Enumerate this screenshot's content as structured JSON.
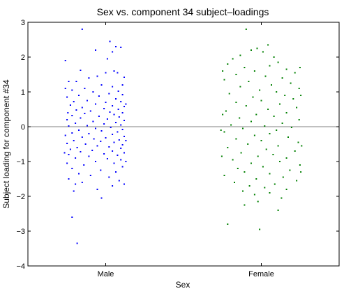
{
  "chart_data": {
    "type": "scatter",
    "title": "Sex vs. component 34 subject–loadings",
    "xlabel": "Sex",
    "ylabel": "Subject loading for component #34",
    "categories": [
      "Male",
      "Female"
    ],
    "ylim": [
      -4,
      3
    ],
    "yticks": [
      -4,
      -3,
      -2,
      -1,
      0,
      1,
      2,
      3
    ],
    "yticklabels": [
      "−4",
      "−3",
      "−2",
      "−1",
      "0",
      "1",
      "2",
      "3"
    ],
    "grid": false,
    "reference_line_y": 0,
    "colors": {
      "Male": "#0000ff",
      "Female": "#008000",
      "reference_line": "#808080"
    },
    "series": [
      {
        "name": "Male",
        "points": [
          [
            -0.28,
            2.8
          ],
          [
            0.05,
            2.45
          ],
          [
            0.12,
            2.3
          ],
          [
            0.18,
            2.28
          ],
          [
            -0.12,
            2.2
          ],
          [
            0.08,
            2.15
          ],
          [
            -0.48,
            1.9
          ],
          [
            0.02,
            1.95
          ],
          [
            -0.3,
            1.62
          ],
          [
            0.0,
            1.55
          ],
          [
            0.1,
            1.6
          ],
          [
            0.14,
            1.55
          ],
          [
            0.22,
            1.42
          ],
          [
            -0.2,
            1.4
          ],
          [
            -0.35,
            1.3
          ],
          [
            -0.1,
            1.45
          ],
          [
            -0.44,
            1.3
          ],
          [
            -0.05,
            1.2
          ],
          [
            0.08,
            1.15
          ],
          [
            0.2,
            1.2
          ],
          [
            -0.25,
            1.1
          ],
          [
            -0.4,
            1.05
          ],
          [
            -0.15,
            1.0
          ],
          [
            0.15,
            1.02
          ],
          [
            0.04,
            0.95
          ],
          [
            -0.32,
            0.9
          ],
          [
            -0.46,
            0.85
          ],
          [
            0.2,
            0.92
          ],
          [
            -0.08,
            0.88
          ],
          [
            0.12,
            0.8
          ],
          [
            -0.22,
            0.75
          ],
          [
            -0.38,
            0.72
          ],
          [
            0.0,
            0.7
          ],
          [
            0.18,
            0.72
          ],
          [
            -0.12,
            0.65
          ],
          [
            -0.42,
            0.62
          ],
          [
            0.08,
            0.6
          ],
          [
            0.22,
            0.58
          ],
          [
            -0.28,
            0.55
          ],
          [
            -0.02,
            0.52
          ],
          [
            0.15,
            0.5
          ],
          [
            -0.35,
            0.48
          ],
          [
            -0.18,
            0.45
          ],
          [
            0.05,
            0.42
          ],
          [
            -0.45,
            0.4
          ],
          [
            0.2,
            0.4
          ],
          [
            -0.25,
            0.38
          ],
          [
            0.1,
            0.35
          ],
          [
            -0.4,
            0.32
          ],
          [
            -0.08,
            0.3
          ],
          [
            0.16,
            0.28
          ],
          [
            -0.3,
            0.25
          ],
          [
            0.02,
            0.22
          ],
          [
            -0.46,
            0.2
          ],
          [
            0.22,
            0.18
          ],
          [
            -0.15,
            0.15
          ],
          [
            0.12,
            0.12
          ],
          [
            -0.36,
            0.1
          ],
          [
            -0.02,
            0.08
          ],
          [
            0.18,
            0.05
          ],
          [
            -0.22,
            0.03
          ],
          [
            -0.44,
            0.02
          ],
          [
            0.06,
            -0.02
          ],
          [
            -0.12,
            -0.05
          ],
          [
            0.2,
            -0.08
          ],
          [
            -0.32,
            -0.1
          ],
          [
            -0.05,
            -0.12
          ],
          [
            0.14,
            -0.15
          ],
          [
            -0.4,
            -0.18
          ],
          [
            -0.2,
            -0.2
          ],
          [
            0.08,
            -0.22
          ],
          [
            -0.48,
            -0.25
          ],
          [
            0.22,
            -0.28
          ],
          [
            -0.28,
            -0.3
          ],
          [
            0.0,
            -0.32
          ],
          [
            -0.14,
            -0.35
          ],
          [
            0.16,
            -0.38
          ],
          [
            -0.38,
            -0.4
          ],
          [
            -0.06,
            -0.42
          ],
          [
            0.1,
            -0.45
          ],
          [
            -0.46,
            -0.48
          ],
          [
            -0.24,
            -0.5
          ],
          [
            0.2,
            -0.52
          ],
          [
            -0.1,
            -0.55
          ],
          [
            0.04,
            -0.58
          ],
          [
            -0.34,
            -0.6
          ],
          [
            0.18,
            -0.62
          ],
          [
            -0.42,
            -0.65
          ],
          [
            -0.16,
            -0.68
          ],
          [
            0.08,
            -0.7
          ],
          [
            -0.3,
            -0.72
          ],
          [
            0.22,
            -0.75
          ],
          [
            -0.02,
            -0.78
          ],
          [
            -0.44,
            -0.8
          ],
          [
            0.14,
            -0.82
          ],
          [
            -0.2,
            -0.85
          ],
          [
            -0.36,
            -0.9
          ],
          [
            0.02,
            -0.92
          ],
          [
            0.18,
            -0.95
          ],
          [
            -0.12,
            -1.0
          ],
          [
            -0.46,
            -1.05
          ],
          [
            0.1,
            -1.05
          ],
          [
            -0.26,
            -1.1
          ],
          [
            0.2,
            -1.15
          ],
          [
            -0.4,
            -1.2
          ],
          [
            -0.06,
            -1.25
          ],
          [
            0.12,
            -1.3
          ],
          [
            -0.32,
            -1.35
          ],
          [
            -0.18,
            -1.4
          ],
          [
            0.04,
            -1.45
          ],
          [
            -0.44,
            -1.5
          ],
          [
            0.16,
            -1.55
          ],
          [
            -0.28,
            -1.6
          ],
          [
            0.22,
            -1.65
          ],
          [
            -0.36,
            -1.65
          ],
          [
            0.08,
            -1.7
          ],
          [
            -0.1,
            -1.8
          ],
          [
            -0.38,
            -1.85
          ],
          [
            -0.05,
            -2.05
          ],
          [
            -0.4,
            -2.6
          ],
          [
            -0.34,
            -3.35
          ],
          [
            -0.48,
            1.1
          ],
          [
            0.24,
            0.65
          ],
          [
            0.24,
            -0.4
          ],
          [
            -0.49,
            -0.75
          ],
          [
            0.24,
            -1.0
          ]
        ]
      },
      {
        "name": "Female",
        "points": [
          [
            -0.18,
            2.8
          ],
          [
            0.08,
            2.35
          ],
          [
            -0.05,
            2.25
          ],
          [
            -0.12,
            2.2
          ],
          [
            0.02,
            2.15
          ],
          [
            -0.25,
            2.05
          ],
          [
            0.15,
            2.0
          ],
          [
            -0.34,
            1.95
          ],
          [
            0.2,
            1.85
          ],
          [
            -0.4,
            1.8
          ],
          [
            0.1,
            1.75
          ],
          [
            -0.2,
            1.7
          ],
          [
            0.3,
            1.65
          ],
          [
            -0.08,
            1.6
          ],
          [
            0.4,
            1.55
          ],
          [
            -0.3,
            1.5
          ],
          [
            0.05,
            1.45
          ],
          [
            0.25,
            1.4
          ],
          [
            -0.44,
            1.35
          ],
          [
            -0.15,
            1.3
          ],
          [
            0.35,
            1.25
          ],
          [
            0.12,
            1.2
          ],
          [
            -0.25,
            1.15
          ],
          [
            0.45,
            1.1
          ],
          [
            -0.02,
            1.05
          ],
          [
            0.18,
            1.0
          ],
          [
            -0.38,
            0.95
          ],
          [
            0.28,
            0.9
          ],
          [
            -0.1,
            0.85
          ],
          [
            0.38,
            0.8
          ],
          [
            0.0,
            0.75
          ],
          [
            -0.3,
            0.7
          ],
          [
            0.22,
            0.65
          ],
          [
            -0.18,
            0.6
          ],
          [
            0.42,
            0.55
          ],
          [
            0.08,
            0.5
          ],
          [
            -0.42,
            0.45
          ],
          [
            0.3,
            0.4
          ],
          [
            -0.06,
            0.35
          ],
          [
            0.15,
            0.3
          ],
          [
            -0.26,
            0.25
          ],
          [
            0.45,
            0.2
          ],
          [
            -0.12,
            0.15
          ],
          [
            0.25,
            0.1
          ],
          [
            -0.36,
            0.05
          ],
          [
            0.04,
            0.02
          ],
          [
            0.36,
            -0.02
          ],
          [
            -0.22,
            -0.05
          ],
          [
            0.18,
            -0.1
          ],
          [
            -0.44,
            -0.15
          ],
          [
            0.1,
            -0.2
          ],
          [
            -0.08,
            -0.25
          ],
          [
            0.32,
            -0.3
          ],
          [
            -0.3,
            -0.35
          ],
          [
            0.0,
            -0.4
          ],
          [
            0.44,
            -0.45
          ],
          [
            -0.16,
            -0.5
          ],
          [
            0.2,
            -0.55
          ],
          [
            -0.4,
            -0.6
          ],
          [
            0.06,
            -0.65
          ],
          [
            0.4,
            -0.7
          ],
          [
            -0.24,
            -0.75
          ],
          [
            0.14,
            -0.8
          ],
          [
            -0.04,
            -0.85
          ],
          [
            0.3,
            -0.9
          ],
          [
            -0.34,
            -0.95
          ],
          [
            0.22,
            -1.0
          ],
          [
            -0.12,
            -1.05
          ],
          [
            0.46,
            -1.1
          ],
          [
            0.02,
            -1.15
          ],
          [
            -0.28,
            -1.2
          ],
          [
            0.34,
            -1.25
          ],
          [
            -0.2,
            -1.3
          ],
          [
            0.1,
            -1.35
          ],
          [
            -0.44,
            -1.4
          ],
          [
            0.26,
            -1.45
          ],
          [
            -0.06,
            -1.5
          ],
          [
            0.42,
            -1.55
          ],
          [
            -0.32,
            -1.6
          ],
          [
            0.16,
            -1.65
          ],
          [
            -0.14,
            -1.7
          ],
          [
            0.04,
            -1.75
          ],
          [
            0.3,
            -1.8
          ],
          [
            -0.22,
            -1.85
          ],
          [
            0.1,
            -1.9
          ],
          [
            -0.08,
            -1.95
          ],
          [
            0.24,
            -2.05
          ],
          [
            -0.04,
            -2.15
          ],
          [
            -0.2,
            -2.25
          ],
          [
            0.2,
            -2.4
          ],
          [
            -0.4,
            -2.8
          ],
          [
            -0.02,
            -2.95
          ],
          [
            -0.46,
            0.35
          ],
          [
            0.47,
            0.9
          ],
          [
            0.48,
            -0.55
          ],
          [
            -0.47,
            -0.85
          ],
          [
            0.47,
            -1.3
          ],
          [
            -0.46,
            1.6
          ],
          [
            0.46,
            1.7
          ],
          [
            -0.48,
            -0.1
          ]
        ]
      }
    ]
  }
}
